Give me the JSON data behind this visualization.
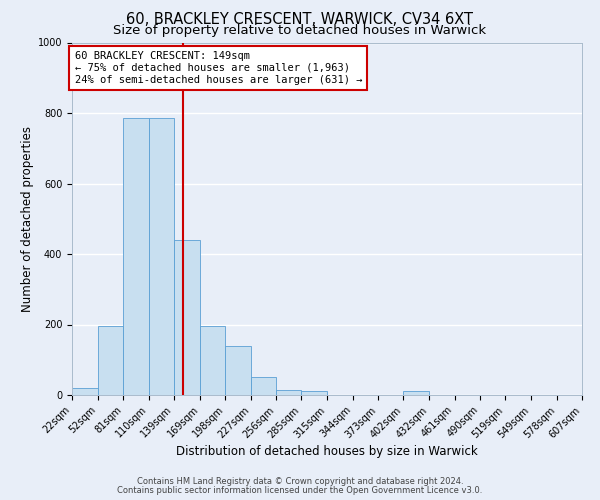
{
  "title": "60, BRACKLEY CRESCENT, WARWICK, CV34 6XT",
  "subtitle": "Size of property relative to detached houses in Warwick",
  "xlabel": "Distribution of detached houses by size in Warwick",
  "ylabel": "Number of detached properties",
  "bar_edges": [
    22,
    52,
    81,
    110,
    139,
    169,
    198,
    227,
    256,
    285,
    315,
    344,
    373,
    402,
    432,
    461,
    490,
    519,
    549,
    578,
    607
  ],
  "bar_heights": [
    20,
    195,
    785,
    785,
    440,
    195,
    140,
    50,
    15,
    10,
    0,
    0,
    0,
    10,
    0,
    0,
    0,
    0,
    0,
    0
  ],
  "bar_color": "#c8dff0",
  "bar_edge_color": "#5a9fd4",
  "property_line_x": 149,
  "property_line_color": "#cc0000",
  "annotation_box_text": "60 BRACKLEY CRESCENT: 149sqm\n← 75% of detached houses are smaller (1,963)\n24% of semi-detached houses are larger (631) →",
  "annotation_box_color": "#cc0000",
  "annotation_box_facecolor": "white",
  "ylim": [
    0,
    1000
  ],
  "xlim": [
    22,
    607
  ],
  "tick_labels": [
    "22sqm",
    "52sqm",
    "81sqm",
    "110sqm",
    "139sqm",
    "169sqm",
    "198sqm",
    "227sqm",
    "256sqm",
    "285sqm",
    "315sqm",
    "344sqm",
    "373sqm",
    "402sqm",
    "432sqm",
    "461sqm",
    "490sqm",
    "519sqm",
    "549sqm",
    "578sqm",
    "607sqm"
  ],
  "footer_line1": "Contains HM Land Registry data © Crown copyright and database right 2024.",
  "footer_line2": "Contains public sector information licensed under the Open Government Licence v3.0.",
  "background_color": "#e8eef8",
  "grid_color": "#ffffff",
  "title_fontsize": 10.5,
  "subtitle_fontsize": 9.5,
  "axis_label_fontsize": 8.5,
  "tick_fontsize": 7,
  "footer_fontsize": 6,
  "annotation_fontsize": 7.5
}
